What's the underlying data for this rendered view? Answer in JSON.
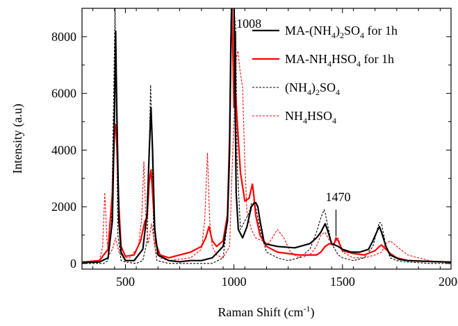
{
  "chart_data": {
    "type": "line",
    "xlabel": "Raman Shift (cm",
    "xlabel_sup": "-1",
    "xlabel_end": ")",
    "ylabel": "Intensity (a.u)",
    "xlim": [
      300,
      2000
    ],
    "ylim": [
      -200,
      9000
    ],
    "xticks": [
      500,
      1000,
      1500,
      2000
    ],
    "yticks": [
      0,
      2000,
      4000,
      6000,
      8000
    ],
    "x_tick_labels": [
      "500",
      "1000",
      "1500",
      "2000"
    ],
    "y_tick_labels": [
      "0",
      "2000",
      "4000",
      "6000",
      "8000"
    ],
    "grid": false,
    "legend_position": "top-right",
    "legend": [
      {
        "parts": [
          "MA-(NH",
          "4",
          ")",
          "2",
          "SO",
          "4",
          " for 1h"
        ]
      },
      {
        "parts": [
          "MA-NH",
          "4",
          "HSO",
          "4",
          " for 1h"
        ]
      },
      {
        "parts": [
          "(NH",
          "4",
          ")",
          "2",
          "SO",
          "4"
        ]
      },
      {
        "parts": [
          "NH",
          "4",
          "HSO",
          "4"
        ]
      }
    ],
    "annotations": [
      {
        "text": "1008",
        "x": 1008,
        "y": 8300
      },
      {
        "text": "1470",
        "x": 1470,
        "y": 1700
      }
    ],
    "series": [
      {
        "name": "MA-(NH4)2SO4 for 1h",
        "color": "#000000",
        "dash": "solid",
        "width": 2.2,
        "x": [
          300,
          380,
          420,
          440,
          450,
          455,
          460,
          470,
          480,
          500,
          540,
          580,
          600,
          610,
          618,
          625,
          635,
          650,
          700,
          750,
          800,
          850,
          900,
          950,
          970,
          980,
          985,
          990,
          995,
          1000,
          1010,
          1020,
          1040,
          1060,
          1080,
          1090,
          1100,
          1110,
          1120,
          1140,
          1200,
          1280,
          1350,
          1380,
          1400,
          1420,
          1430,
          1450,
          1480,
          1500,
          1540,
          1580,
          1620,
          1640,
          1660,
          1670,
          1680,
          1700,
          1720,
          1760,
          1800,
          1900,
          2000
        ],
        "y": [
          30,
          50,
          200,
          1500,
          5500,
          8200,
          5500,
          1500,
          400,
          100,
          100,
          500,
          1800,
          4000,
          5500,
          4000,
          1200,
          300,
          100,
          60,
          100,
          100,
          200,
          600,
          1500,
          4000,
          7500,
          9500,
          9500,
          9500,
          2500,
          1200,
          900,
          1300,
          2000,
          2100,
          2150,
          2000,
          1500,
          700,
          600,
          550,
          700,
          900,
          1100,
          1400,
          1200,
          700,
          600,
          500,
          400,
          400,
          500,
          800,
          1150,
          1300,
          1100,
          600,
          300,
          150,
          100,
          70,
          50
        ]
      },
      {
        "name": "MA-NH4HSO4 for 1h",
        "color": "#ff0000",
        "dash": "solid",
        "width": 2.2,
        "x": [
          300,
          380,
          420,
          440,
          450,
          455,
          460,
          470,
          480,
          500,
          540,
          570,
          590,
          600,
          610,
          618,
          625,
          640,
          660,
          700,
          800,
          850,
          870,
          885,
          900,
          920,
          950,
          970,
          980,
          990,
          1000,
          1008,
          1015,
          1030,
          1050,
          1070,
          1085,
          1090,
          1100,
          1120,
          1150,
          1200,
          1300,
          1380,
          1400,
          1420,
          1440,
          1460,
          1470,
          1480,
          1500,
          1550,
          1600,
          1650,
          1670,
          1680,
          1700,
          1720,
          1750,
          1800,
          1900,
          2000
        ],
        "y": [
          50,
          100,
          500,
          2500,
          4800,
          4900,
          4200,
          2000,
          600,
          250,
          300,
          800,
          1500,
          1600,
          2900,
          3300,
          2500,
          700,
          300,
          200,
          400,
          600,
          900,
          1300,
          800,
          600,
          800,
          1700,
          4500,
          9500,
          5500,
          6000,
          5000,
          3200,
          2200,
          2300,
          2800,
          2500,
          1700,
          1000,
          600,
          400,
          300,
          300,
          400,
          600,
          700,
          650,
          900,
          800,
          450,
          350,
          300,
          450,
          600,
          650,
          500,
          350,
          200,
          100,
          70,
          50
        ]
      },
      {
        "name": "(NH4)2SO4",
        "color": "#000000",
        "dash": "3,2",
        "width": 1.1,
        "x": [
          300,
          400,
          420,
          435,
          445,
          452,
          458,
          465,
          480,
          500,
          550,
          580,
          600,
          608,
          616,
          622,
          630,
          645,
          700,
          800,
          900,
          950,
          970,
          980,
          985,
          990,
          995,
          1000,
          1008,
          1015,
          1030,
          1050,
          1070,
          1080,
          1090,
          1100,
          1120,
          1150,
          1200,
          1250,
          1300,
          1350,
          1380,
          1400,
          1415,
          1420,
          1430,
          1450,
          1480,
          1500,
          1550,
          1600,
          1640,
          1660,
          1670,
          1680,
          1690,
          1700,
          1720,
          1750,
          1800,
          1900,
          2000
        ],
        "y": [
          0,
          0,
          100,
          1200,
          5500,
          9000,
          6000,
          1000,
          100,
          50,
          0,
          100,
          800,
          3500,
          6300,
          4500,
          900,
          100,
          0,
          0,
          0,
          200,
          1500,
          3500,
          8000,
          9500,
          9500,
          9000,
          8300,
          3500,
          1200,
          1500,
          1800,
          2100,
          2150,
          2000,
          1200,
          400,
          200,
          100,
          200,
          500,
          1100,
          1600,
          1900,
          1800,
          1400,
          700,
          300,
          200,
          100,
          200,
          600,
          1200,
          1450,
          1400,
          1000,
          600,
          200,
          100,
          50,
          0,
          0
        ]
      },
      {
        "name": "NH4HSO4",
        "color": "#ff0000",
        "dash": "3,2",
        "width": 1.1,
        "x": [
          300,
          380,
          395,
          405,
          415,
          425,
          440,
          455,
          470,
          490,
          520,
          560,
          575,
          585,
          595,
          605,
          620,
          640,
          660,
          700,
          800,
          850,
          865,
          878,
          888,
          900,
          920,
          950,
          980,
          990,
          1000,
          1010,
          1018,
          1028,
          1040,
          1050,
          1060,
          1080,
          1100,
          1130,
          1160,
          1200,
          1230,
          1260,
          1300,
          1350,
          1380,
          1400,
          1420,
          1440,
          1460,
          1480,
          1500,
          1550,
          1600,
          1650,
          1680,
          1700,
          1720,
          1750,
          1800,
          1900,
          2000
        ],
        "y": [
          0,
          100,
          600,
          2500,
          800,
          300,
          500,
          900,
          400,
          200,
          200,
          600,
          1600,
          3600,
          1500,
          700,
          1400,
          400,
          200,
          100,
          200,
          500,
          1500,
          3900,
          1500,
          600,
          300,
          200,
          600,
          3000,
          5000,
          7200,
          7500,
          6800,
          6200,
          3500,
          1800,
          1200,
          900,
          800,
          700,
          1200,
          900,
          400,
          200,
          300,
          600,
          1000,
          1100,
          800,
          700,
          900,
          400,
          200,
          200,
          300,
          400,
          700,
          800,
          600,
          300,
          100,
          0
        ]
      }
    ]
  }
}
